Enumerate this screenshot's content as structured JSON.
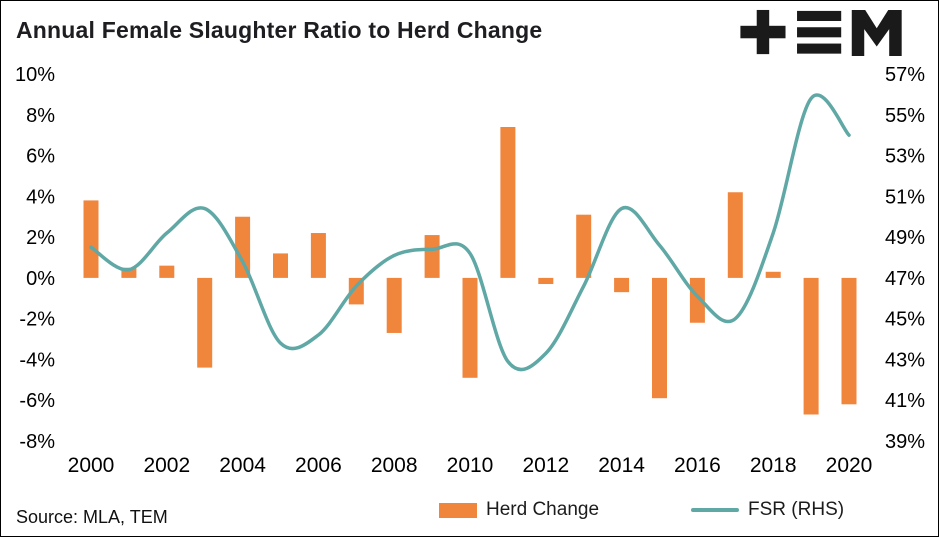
{
  "header": {
    "title": "Annual Female Slaughter Ratio to Herd Change",
    "logo": "TEM"
  },
  "footer": {
    "source": "Source: MLA, TEM"
  },
  "legend": {
    "bar": "Herd Change",
    "line": "FSR (RHS)"
  },
  "colors": {
    "bar": "#F0853C",
    "line": "#5FA8A5",
    "text": "#000000",
    "logo": "#1A1A1A"
  },
  "chart_data": {
    "type": "bar+line combo",
    "title": "Annual Female Slaughter Ratio to Herd Change",
    "x": [
      2000,
      2001,
      2002,
      2003,
      2004,
      2005,
      2006,
      2007,
      2008,
      2009,
      2010,
      2011,
      2012,
      2013,
      2014,
      2015,
      2016,
      2017,
      2018,
      2019,
      2020
    ],
    "series": [
      {
        "name": "Herd Change",
        "type": "bar",
        "axis": "left",
        "values": [
          3.8,
          0.5,
          0.6,
          -4.4,
          3.0,
          1.2,
          2.2,
          -1.3,
          -2.7,
          2.1,
          -4.9,
          7.4,
          -0.3,
          3.1,
          -0.7,
          -5.9,
          -2.2,
          4.2,
          0.3,
          -6.7,
          -6.2
        ]
      },
      {
        "name": "FSR (RHS)",
        "type": "line",
        "axis": "right",
        "values": [
          48.5,
          47.4,
          49.2,
          50.4,
          47.8,
          43.8,
          44.2,
          46.6,
          48.1,
          48.4,
          48.2,
          42.9,
          43.3,
          46.6,
          50.4,
          48.6,
          46.1,
          45.0,
          49.2,
          55.8,
          54.0
        ]
      }
    ],
    "left_axis": {
      "min": -8,
      "max": 10,
      "ticks": [
        "10%",
        "8%",
        "6%",
        "4%",
        "2%",
        "0%",
        "-2%",
        "-4%",
        "-6%",
        "-8%"
      ]
    },
    "right_axis": {
      "min": 39,
      "max": 57,
      "ticks": [
        "57%",
        "55%",
        "53%",
        "51%",
        "49%",
        "47%",
        "45%",
        "43%",
        "41%",
        "39%"
      ]
    },
    "x_ticks": [
      "2000",
      "2002",
      "2004",
      "2006",
      "2008",
      "2010",
      "2012",
      "2014",
      "2016",
      "2018",
      "2020"
    ],
    "grid": false,
    "legend_position": "bottom"
  }
}
